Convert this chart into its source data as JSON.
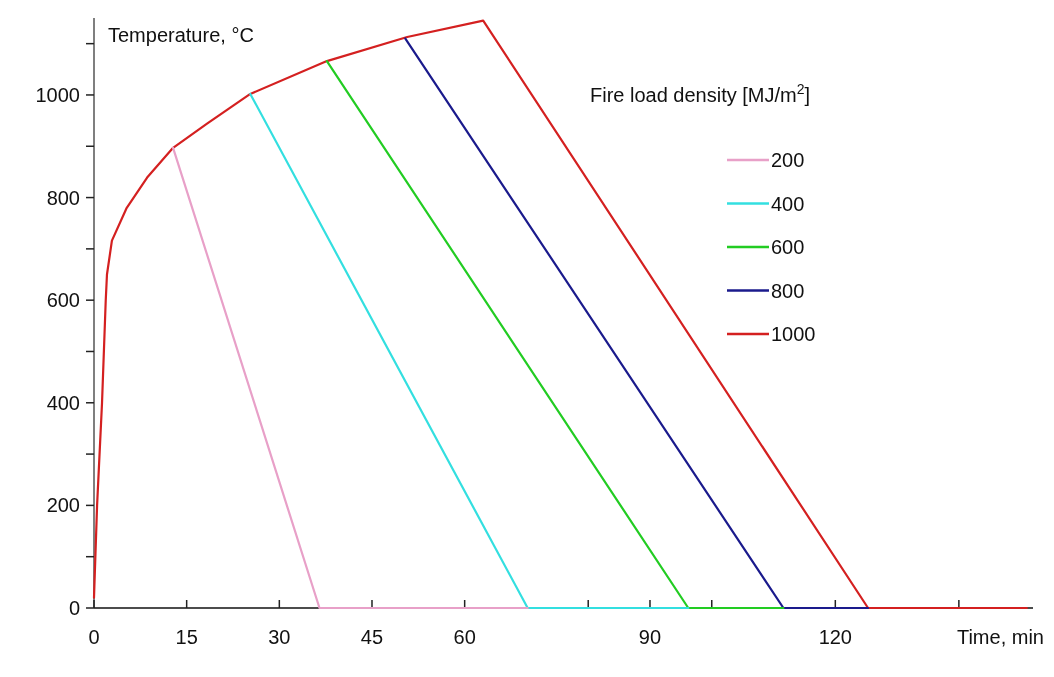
{
  "chart_data": {
    "type": "line",
    "ylabel": "Temperature, °C",
    "xlabel": "Time, min",
    "legend_title": "Fire load density [MJ/m$^{2}$]",
    "legend": "right",
    "grid": false,
    "marker": "none",
    "line_style": "solid",
    "xlim": [
      0,
      152
    ],
    "xticks": [
      0,
      15,
      30,
      45,
      60,
      {
        "value": 80,
        "label": null
      },
      90,
      {
        "value": 100,
        "label": null
      },
      120,
      {
        "value": 140,
        "label": null
      }
    ],
    "ylim": [
      0,
      1150
    ],
    "yticks": [
      0,
      {
        "value": 100,
        "label": null
      },
      200,
      {
        "value": 300,
        "label": null
      },
      400,
      {
        "value": 500,
        "label": null
      },
      600,
      {
        "value": 700,
        "label": null
      },
      800,
      {
        "value": 900,
        "label": null
      },
      1000,
      {
        "value": 1100,
        "label": null
      }
    ],
    "series": [
      {
        "name": "200",
        "color": "#e8a0c8",
        "x": [
          12.8,
          36.5,
          70.2
        ],
        "values": [
          897,
          0,
          0
        ]
      },
      {
        "name": "400",
        "color": "#33dfe0",
        "x": [
          25.3,
          70.2,
          96.2
        ],
        "values": [
          1002,
          0,
          0
        ]
      },
      {
        "name": "600",
        "color": "#22cc22",
        "x": [
          37.7,
          96.2,
          111.6
        ],
        "values": [
          1066,
          0,
          0
        ]
      },
      {
        "name": "800",
        "color": "#1a1a8c",
        "x": [
          50.4,
          111.6,
          125.3
        ],
        "values": [
          1110,
          0,
          0
        ]
      },
      {
        "name": "1000",
        "color": "#d42020",
        "x": [
          0,
          0.5,
          1.3,
          1.9,
          2.1,
          2.9,
          5.3,
          8.6,
          12.8,
          18.3,
          25.3,
          37.7,
          50.7,
          63,
          125.3,
          151
        ],
        "values": [
          20,
          200,
          400,
          600,
          650,
          716,
          780,
          839,
          897,
          944,
          1002,
          1066,
          1113,
          1145,
          0,
          0
        ]
      }
    ]
  }
}
